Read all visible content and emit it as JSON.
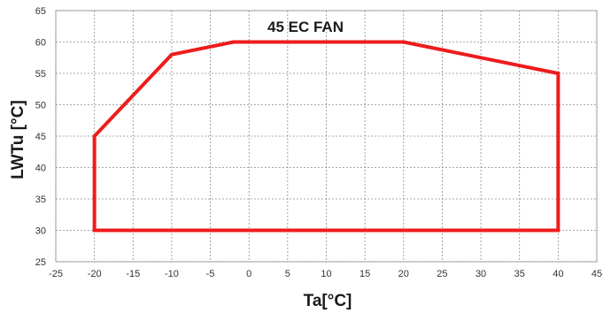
{
  "chart_data": {
    "type": "line",
    "title": "45 EC FAN",
    "xlabel": "Ta[°C]",
    "ylabel": "LWTu [°C]",
    "xlim": [
      -25,
      45
    ],
    "ylim": [
      25,
      65
    ],
    "xticks": [
      -25,
      -20,
      -15,
      -10,
      -5,
      0,
      5,
      10,
      15,
      20,
      25,
      30,
      35,
      40,
      45
    ],
    "yticks": [
      25,
      30,
      35,
      40,
      45,
      50,
      55,
      60,
      65
    ],
    "grid": true,
    "legend": "none",
    "series": [
      {
        "color": "#ee1c1c",
        "points": [
          [
            -20,
            30
          ],
          [
            -20,
            45
          ],
          [
            -10,
            58
          ],
          [
            -2,
            60
          ],
          [
            20,
            60
          ],
          [
            40,
            55
          ],
          [
            40,
            30
          ],
          [
            -20,
            30
          ]
        ]
      }
    ]
  }
}
